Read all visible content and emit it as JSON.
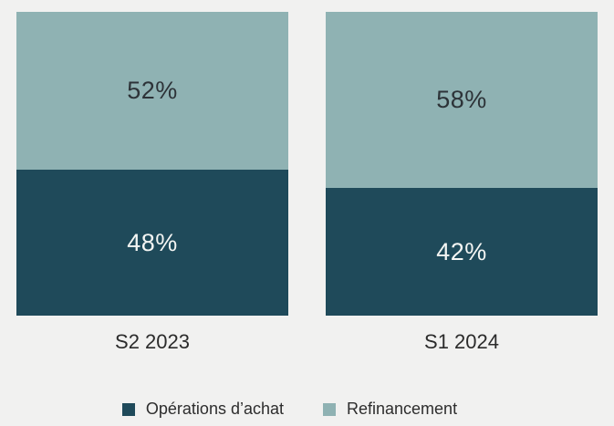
{
  "page": {
    "background": "#f1f1f0"
  },
  "chart_data": {
    "type": "bar",
    "subtype": "stacked-100-percent-columns",
    "title": "",
    "xlabel": "",
    "ylabel": "",
    "ylim": [
      0,
      100
    ],
    "grid": false,
    "axes_visible": false,
    "legend_position": "bottom",
    "categories": [
      "S2 2023",
      "S1 2024"
    ],
    "series": [
      {
        "name": "Opérations d’achat",
        "color": "#1f4a5a",
        "values": [
          48,
          42
        ],
        "labels": [
          "48%",
          "42%"
        ],
        "label_color": "#f3f5f3"
      },
      {
        "name": "Refinancement",
        "color": "#8fb2b3",
        "values": [
          52,
          58
        ],
        "labels": [
          "52%",
          "58%"
        ],
        "label_color": "#2d3338"
      }
    ],
    "category_label_color": "#2b2b2b"
  }
}
